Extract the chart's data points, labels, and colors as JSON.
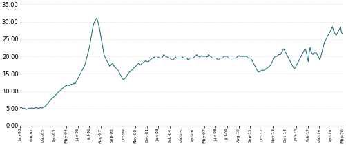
{
  "line_color": "#1a6b72",
  "background_color": "#ffffff",
  "grid_color": "#c8c8c8",
  "line_width": 0.75,
  "ylim": [
    0,
    35
  ],
  "yticks": [
    0.0,
    5.0,
    10.0,
    15.0,
    20.0,
    25.0,
    30.0,
    35.0
  ],
  "x_tick_labels": [
    "Jan-90",
    "Feb-91",
    "Mar-92",
    "Apr-93",
    "May-94",
    "Jun-95",
    "Jul-96",
    "Aug-97",
    "Sep-98",
    "Oct-99",
    "Nov-00",
    "Dec-01",
    "Jan-03",
    "Feb-04",
    "Mar-05",
    "Apr-06",
    "May-07",
    "Jun-08",
    "Jul-09",
    "Aug-10",
    "Sep-11",
    "Oct-12",
    "Nov-13",
    "Dec-14",
    "Jan-16",
    "Feb-17",
    "Mar-18",
    "Apr-19",
    "May-20"
  ],
  "y_values": [
    5.2,
    5.3,
    5.2,
    5.0,
    5.1,
    5.0,
    4.8,
    4.7,
    4.9,
    5.0,
    5.1,
    5.0,
    5.1,
    5.2,
    5.1,
    5.0,
    5.2,
    5.1,
    5.3,
    5.2,
    5.1,
    5.0,
    5.2,
    5.3,
    5.1,
    5.2,
    5.4,
    5.5,
    5.7,
    5.9,
    6.2,
    6.5,
    6.9,
    7.2,
    7.5,
    7.8,
    8.0,
    8.2,
    8.5,
    8.8,
    9.0,
    9.3,
    9.6,
    9.8,
    10.0,
    10.2,
    10.5,
    10.8,
    11.0,
    11.2,
    11.4,
    11.5,
    11.6,
    11.8,
    11.7,
    11.6,
    11.9,
    12.0,
    11.8,
    12.1,
    12.3,
    12.0,
    12.5,
    13.0,
    13.5,
    14.0,
    14.5,
    15.0,
    15.5,
    16.0,
    16.5,
    17.0,
    17.5,
    18.5,
    19.5,
    20.5,
    21.5,
    22.5,
    24.0,
    25.5,
    27.0,
    28.5,
    29.5,
    30.0,
    30.5,
    31.0,
    30.5,
    29.5,
    28.5,
    27.0,
    25.5,
    24.0,
    22.5,
    21.0,
    20.0,
    19.5,
    19.0,
    18.5,
    18.0,
    17.5,
    17.0,
    17.5,
    17.8,
    18.0,
    17.5,
    17.0,
    16.8,
    16.5,
    16.2,
    16.0,
    15.5,
    15.0,
    14.5,
    14.0,
    13.5,
    13.3,
    13.5,
    13.8,
    14.0,
    14.5,
    15.0,
    15.3,
    15.5,
    15.8,
    16.0,
    16.2,
    16.5,
    16.8,
    17.0,
    17.2,
    17.5,
    17.8,
    18.0,
    17.5,
    17.5,
    17.8,
    18.0,
    18.2,
    18.5,
    18.5,
    18.8,
    18.5,
    18.5,
    18.5,
    18.8,
    19.0,
    19.2,
    19.5,
    19.5,
    19.8,
    19.5,
    19.5,
    19.5,
    19.5,
    19.8,
    19.5,
    19.5,
    19.5,
    19.5,
    20.0,
    20.5,
    20.2,
    20.0,
    20.0,
    19.8,
    19.5,
    19.5,
    19.5,
    19.2,
    19.0,
    19.0,
    19.2,
    19.5,
    19.8,
    19.5,
    19.5,
    19.5,
    19.5,
    19.5,
    19.5,
    19.5,
    19.8,
    19.5,
    19.5,
    19.5,
    19.5,
    19.5,
    19.0,
    19.2,
    19.5,
    19.5,
    19.5,
    19.5,
    19.5,
    19.8,
    20.0,
    20.2,
    20.5,
    20.0,
    20.0,
    19.8,
    20.0,
    20.2,
    20.0,
    20.0,
    20.0,
    20.0,
    20.0,
    19.8,
    20.0,
    20.5,
    20.2,
    20.0,
    19.8,
    19.5,
    19.5,
    19.5,
    19.5,
    19.5,
    19.5,
    19.0,
    19.0,
    19.2,
    19.5,
    19.5,
    19.5,
    19.5,
    20.0,
    20.0,
    20.0,
    20.0,
    19.8,
    19.5,
    19.5,
    19.5,
    19.5,
    19.5,
    19.5,
    19.5,
    19.5,
    19.5,
    19.5,
    20.0,
    20.0,
    20.2,
    20.0,
    20.0,
    20.0,
    20.0,
    20.0,
    20.0,
    20.0,
    20.0,
    19.8,
    19.5,
    19.5,
    19.5,
    19.5,
    19.0,
    18.5,
    18.0,
    17.5,
    17.0,
    16.5,
    16.0,
    15.5,
    15.5,
    15.5,
    15.8,
    16.0,
    16.0,
    16.0,
    16.0,
    16.2,
    16.5,
    16.5,
    16.8,
    17.0,
    17.2,
    17.5,
    18.0,
    18.5,
    19.0,
    19.5,
    20.0,
    20.0,
    20.0,
    20.2,
    20.5,
    20.5,
    20.5,
    21.0,
    21.5,
    22.0,
    22.0,
    21.5,
    21.0,
    20.5,
    20.0,
    19.5,
    19.0,
    18.5,
    18.0,
    17.5,
    17.0,
    16.5,
    16.5,
    17.0,
    17.5,
    18.0,
    18.5,
    19.0,
    19.5,
    20.0,
    20.5,
    21.0,
    21.5,
    22.0,
    22.0,
    21.0,
    19.5,
    18.5,
    21.0,
    22.5,
    21.5,
    21.0,
    20.5,
    21.0,
    21.0,
    21.0,
    21.0,
    20.5,
    20.0,
    19.5,
    19.0,
    20.0,
    21.0,
    22.0,
    23.0,
    24.0,
    24.5,
    25.0,
    25.5,
    26.0,
    26.5,
    27.0,
    27.5,
    28.0,
    28.5,
    27.5,
    27.0,
    26.5,
    26.0,
    26.5,
    27.0,
    27.5,
    28.0,
    28.5,
    27.0,
    26.5
  ]
}
